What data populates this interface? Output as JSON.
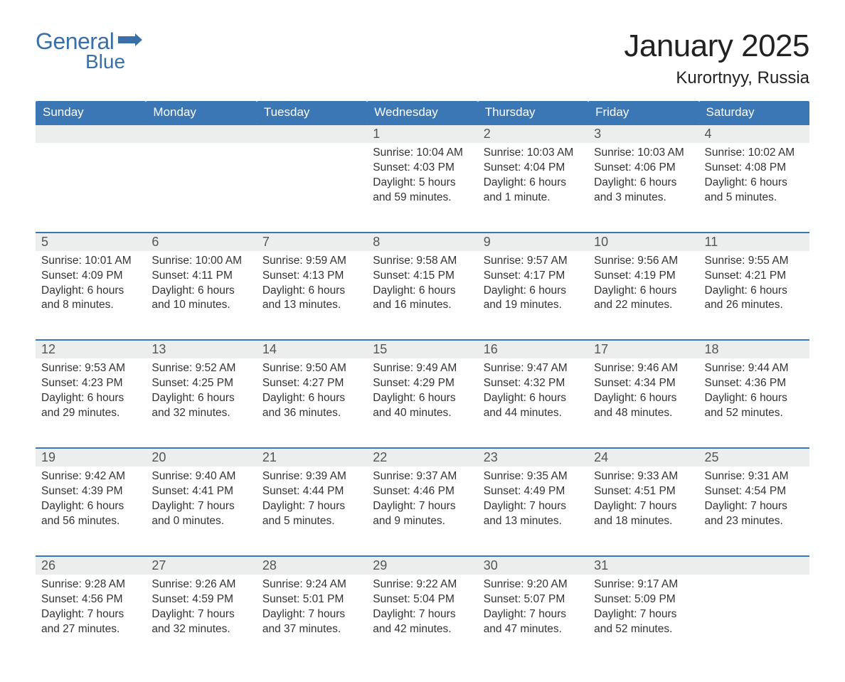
{
  "logo": {
    "text1": "General",
    "text2": "Blue",
    "brand_color": "#3b6fa8"
  },
  "title": "January 2025",
  "location": "Kurortnyy, Russia",
  "colors": {
    "header_bg": "#3b77b5",
    "header_text": "#ffffff",
    "daynum_bg": "#eceded",
    "daynum_border": "#3b77b5",
    "body_text": "#333333",
    "page_bg": "#ffffff"
  },
  "fonts": {
    "title_size_pt": 33,
    "location_size_pt": 18,
    "dow_size_pt": 13,
    "daynum_size_pt": 14,
    "body_size_pt": 12
  },
  "days_of_week": [
    "Sunday",
    "Monday",
    "Tuesday",
    "Wednesday",
    "Thursday",
    "Friday",
    "Saturday"
  ],
  "weeks": [
    [
      null,
      null,
      null,
      {
        "n": "1",
        "sunrise": "10:04 AM",
        "sunset": "4:03 PM",
        "daylight": "5 hours and 59 minutes."
      },
      {
        "n": "2",
        "sunrise": "10:03 AM",
        "sunset": "4:04 PM",
        "daylight": "6 hours and 1 minute."
      },
      {
        "n": "3",
        "sunrise": "10:03 AM",
        "sunset": "4:06 PM",
        "daylight": "6 hours and 3 minutes."
      },
      {
        "n": "4",
        "sunrise": "10:02 AM",
        "sunset": "4:08 PM",
        "daylight": "6 hours and 5 minutes."
      }
    ],
    [
      {
        "n": "5",
        "sunrise": "10:01 AM",
        "sunset": "4:09 PM",
        "daylight": "6 hours and 8 minutes."
      },
      {
        "n": "6",
        "sunrise": "10:00 AM",
        "sunset": "4:11 PM",
        "daylight": "6 hours and 10 minutes."
      },
      {
        "n": "7",
        "sunrise": "9:59 AM",
        "sunset": "4:13 PM",
        "daylight": "6 hours and 13 minutes."
      },
      {
        "n": "8",
        "sunrise": "9:58 AM",
        "sunset": "4:15 PM",
        "daylight": "6 hours and 16 minutes."
      },
      {
        "n": "9",
        "sunrise": "9:57 AM",
        "sunset": "4:17 PM",
        "daylight": "6 hours and 19 minutes."
      },
      {
        "n": "10",
        "sunrise": "9:56 AM",
        "sunset": "4:19 PM",
        "daylight": "6 hours and 22 minutes."
      },
      {
        "n": "11",
        "sunrise": "9:55 AM",
        "sunset": "4:21 PM",
        "daylight": "6 hours and 26 minutes."
      }
    ],
    [
      {
        "n": "12",
        "sunrise": "9:53 AM",
        "sunset": "4:23 PM",
        "daylight": "6 hours and 29 minutes."
      },
      {
        "n": "13",
        "sunrise": "9:52 AM",
        "sunset": "4:25 PM",
        "daylight": "6 hours and 32 minutes."
      },
      {
        "n": "14",
        "sunrise": "9:50 AM",
        "sunset": "4:27 PM",
        "daylight": "6 hours and 36 minutes."
      },
      {
        "n": "15",
        "sunrise": "9:49 AM",
        "sunset": "4:29 PM",
        "daylight": "6 hours and 40 minutes."
      },
      {
        "n": "16",
        "sunrise": "9:47 AM",
        "sunset": "4:32 PM",
        "daylight": "6 hours and 44 minutes."
      },
      {
        "n": "17",
        "sunrise": "9:46 AM",
        "sunset": "4:34 PM",
        "daylight": "6 hours and 48 minutes."
      },
      {
        "n": "18",
        "sunrise": "9:44 AM",
        "sunset": "4:36 PM",
        "daylight": "6 hours and 52 minutes."
      }
    ],
    [
      {
        "n": "19",
        "sunrise": "9:42 AM",
        "sunset": "4:39 PM",
        "daylight": "6 hours and 56 minutes."
      },
      {
        "n": "20",
        "sunrise": "9:40 AM",
        "sunset": "4:41 PM",
        "daylight": "7 hours and 0 minutes."
      },
      {
        "n": "21",
        "sunrise": "9:39 AM",
        "sunset": "4:44 PM",
        "daylight": "7 hours and 5 minutes."
      },
      {
        "n": "22",
        "sunrise": "9:37 AM",
        "sunset": "4:46 PM",
        "daylight": "7 hours and 9 minutes."
      },
      {
        "n": "23",
        "sunrise": "9:35 AM",
        "sunset": "4:49 PM",
        "daylight": "7 hours and 13 minutes."
      },
      {
        "n": "24",
        "sunrise": "9:33 AM",
        "sunset": "4:51 PM",
        "daylight": "7 hours and 18 minutes."
      },
      {
        "n": "25",
        "sunrise": "9:31 AM",
        "sunset": "4:54 PM",
        "daylight": "7 hours and 23 minutes."
      }
    ],
    [
      {
        "n": "26",
        "sunrise": "9:28 AM",
        "sunset": "4:56 PM",
        "daylight": "7 hours and 27 minutes."
      },
      {
        "n": "27",
        "sunrise": "9:26 AM",
        "sunset": "4:59 PM",
        "daylight": "7 hours and 32 minutes."
      },
      {
        "n": "28",
        "sunrise": "9:24 AM",
        "sunset": "5:01 PM",
        "daylight": "7 hours and 37 minutes."
      },
      {
        "n": "29",
        "sunrise": "9:22 AM",
        "sunset": "5:04 PM",
        "daylight": "7 hours and 42 minutes."
      },
      {
        "n": "30",
        "sunrise": "9:20 AM",
        "sunset": "5:07 PM",
        "daylight": "7 hours and 47 minutes."
      },
      {
        "n": "31",
        "sunrise": "9:17 AM",
        "sunset": "5:09 PM",
        "daylight": "7 hours and 52 minutes."
      },
      null
    ]
  ],
  "labels": {
    "sunrise": "Sunrise:",
    "sunset": "Sunset:",
    "daylight": "Daylight:"
  }
}
